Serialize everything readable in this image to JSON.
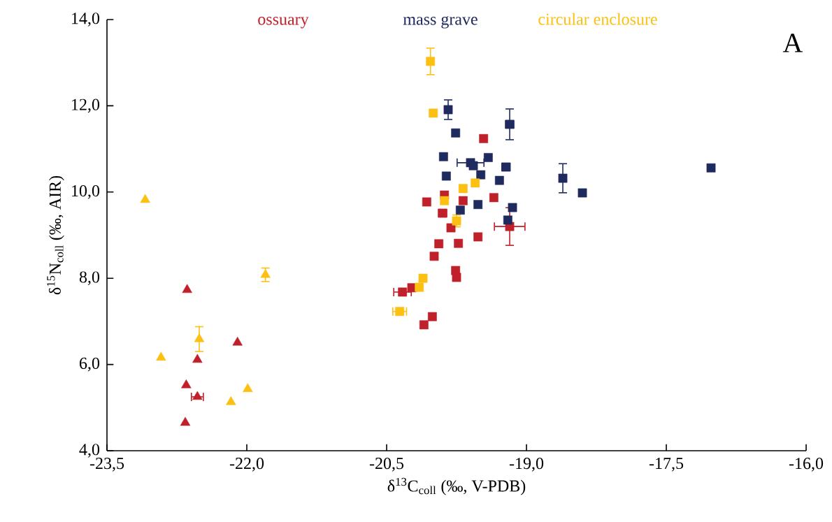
{
  "chart_data": {
    "type": "scatter",
    "xlabel": "δ$^{13}$C$_{coll}$ (‰, V-PDB)",
    "ylabel": "δ$^{15}$N$_{coll}$ (‰, AIR)",
    "annotations": [
      "A"
    ],
    "xlim": [
      -23.5,
      -16.0
    ],
    "ylim": [
      4.0,
      14.0
    ],
    "xticks": [
      {
        "value": -23.5,
        "label": "-23,5"
      },
      {
        "value": -22.0,
        "label": "-22,0"
      },
      {
        "value": -20.5,
        "label": "-20,5"
      },
      {
        "value": -19.0,
        "label": "-19,0"
      },
      {
        "value": -17.5,
        "label": "-17,5"
      },
      {
        "value": -16.0,
        "label": "-16,0"
      }
    ],
    "yticks": [
      {
        "value": 4,
        "label": "4,0"
      },
      {
        "value": 6,
        "label": "6,0"
      },
      {
        "value": 8,
        "label": "8,0"
      },
      {
        "value": 10,
        "label": "10,0"
      },
      {
        "value": 12,
        "label": "12,0"
      },
      {
        "value": 14,
        "label": "14,0"
      }
    ],
    "grid": false,
    "legend": "top",
    "series": [
      {
        "name": "ossuary",
        "color": "#c0202a",
        "marker": "square",
        "x": [
          -19.46,
          -19.88,
          -20.07,
          -19.9,
          -19.68,
          -19.35,
          -19.81,
          -19.18,
          -19.94,
          -19.73,
          -19.52,
          -19.99,
          -19.76,
          -19.75,
          -20.23,
          -20.33,
          -20.01,
          -20.1
        ],
        "values": [
          11.24,
          9.93,
          9.77,
          9.51,
          9.8,
          9.87,
          9.17,
          9.2,
          8.8,
          8.81,
          8.96,
          8.51,
          8.18,
          8.02,
          7.78,
          7.68,
          7.11,
          6.92
        ],
        "errors": [
          null,
          null,
          null,
          null,
          null,
          null,
          null,
          0.45,
          null,
          null,
          null,
          null,
          null,
          null,
          null,
          null,
          null,
          null
        ],
        "xerrors": [
          null,
          null,
          null,
          0.05,
          null,
          null,
          null,
          0.17,
          null,
          null,
          null,
          null,
          null,
          null,
          null,
          0.1,
          null,
          null
        ]
      },
      {
        "name": "mass grave",
        "color": "#1f2a5e",
        "marker": "square",
        "x": [
          -19.84,
          -19.18,
          -19.76,
          -19.89,
          -19.41,
          -19.6,
          -19.57,
          -19.22,
          -19.86,
          -19.49,
          -19.29,
          -18.61,
          -18.4,
          -17.02,
          -19.71,
          -19.52,
          -19.15,
          -19.2
        ],
        "values": [
          11.91,
          11.57,
          11.37,
          10.82,
          10.8,
          10.68,
          10.61,
          10.58,
          10.37,
          10.4,
          10.27,
          10.32,
          9.98,
          10.56,
          9.58,
          9.71,
          9.64,
          9.35
        ],
        "errors": [
          0.24,
          0.37,
          null,
          null,
          null,
          null,
          null,
          null,
          null,
          null,
          null,
          0.35,
          null,
          null,
          null,
          null,
          null,
          null
        ],
        "xerrors": [
          null,
          0.05,
          null,
          null,
          null,
          0.15,
          null,
          0.05,
          null,
          null,
          null,
          null,
          null,
          null,
          null,
          null,
          null,
          null
        ]
      },
      {
        "name": "circular enclosure",
        "color": "#fcc012",
        "marker": "square",
        "x": [
          -20.03,
          -20.0,
          -19.68,
          -19.55,
          -19.88,
          -19.75,
          -20.11,
          -20.15,
          -20.36
        ],
        "values": [
          13.03,
          11.83,
          10.08,
          10.21,
          9.8,
          9.33,
          8.0,
          7.79,
          7.23
        ],
        "errors": [
          0.32,
          null,
          0.1,
          null,
          null,
          0.15,
          null,
          null,
          null
        ],
        "xerrors": [
          null,
          null,
          null,
          null,
          null,
          null,
          null,
          null,
          0.08
        ]
      },
      {
        "color": "#c0202a",
        "marker": "triangle",
        "x": [
          -22.64,
          -22.65,
          -22.53,
          -22.53,
          -22.66,
          -22.1
        ],
        "values": [
          7.73,
          5.52,
          6.11,
          5.25,
          4.65,
          6.51
        ],
        "errors": [
          null,
          null,
          null,
          null,
          null,
          null
        ],
        "xerrors": [
          null,
          null,
          null,
          0.07,
          null,
          null
        ]
      },
      {
        "color": "#fcc012",
        "marker": "triangle",
        "x": [
          -23.09,
          -22.92,
          -22.51,
          -22.17,
          -21.99,
          -21.8
        ],
        "values": [
          9.82,
          6.16,
          6.59,
          5.13,
          5.43,
          8.08
        ],
        "errors": [
          null,
          null,
          0.3,
          null,
          null,
          0.17
        ],
        "xerrors": [
          null,
          null,
          null,
          null,
          null,
          null
        ]
      }
    ]
  }
}
